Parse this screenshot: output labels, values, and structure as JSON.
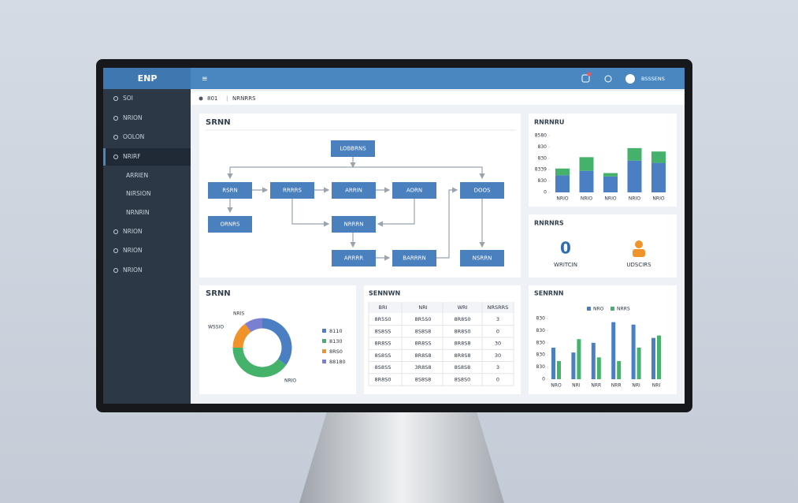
{
  "topbar": {
    "logo": "ENP",
    "menu_icon": "≡",
    "user": "BSSSENS"
  },
  "breadcrumb": {
    "home": "801",
    "page": "NRNRRS"
  },
  "sidebar": {
    "items": [
      "SOI",
      "NRION",
      "OOLON",
      "NRIRF"
    ],
    "subitems": [
      "ARRIEN",
      "NIRSION",
      "NRNRIN"
    ],
    "more": [
      "NRION",
      "NRION",
      "NRION"
    ]
  },
  "flowchart": {
    "title": "SRNN",
    "nodes": [
      "LOBBRNS",
      "RSRN",
      "RRRRS",
      "ARRIN",
      "AORN",
      "DOOS",
      "ORNRS",
      "NRRRN",
      "ARRRR",
      "BARRRN",
      "NSRRN"
    ]
  },
  "stacked_bar": {
    "title": "RNRNRU",
    "categories": [
      "NRIO",
      "NRIO",
      "NRIO",
      "NRIO",
      "NRIO"
    ],
    "series": [
      {
        "color": "#4a7fc4",
        "values": [
          15,
          19,
          14,
          28,
          26
        ]
      },
      {
        "color": "#45b26b",
        "values": [
          6,
          12,
          3,
          11,
          10
        ]
      }
    ],
    "ylim": [
      0,
      50
    ],
    "yticks": [
      0,
      {
        "value": 10,
        "label": "830"
      },
      {
        "value": 20,
        "label": "8339"
      },
      {
        "value": 30,
        "label": "830"
      },
      {
        "value": 40,
        "label": "830"
      },
      {
        "value": 50,
        "label": "8580"
      }
    ]
  },
  "stats": {
    "title": "RNRNRS",
    "items": [
      {
        "value": "0",
        "label": "WRITCIN"
      },
      {
        "label": "UDSCIRS"
      }
    ]
  },
  "donut": {
    "title": "SRNN",
    "values": [
      35,
      40,
      15,
      10
    ],
    "colors": [
      "#4a7fc4",
      "#45b26b",
      "#f0932b",
      "#7b7fd1"
    ],
    "callouts": [
      "NRIS",
      "WSSIO",
      "NRIO"
    ],
    "legend": [
      "8110",
      "8130",
      "8RS0",
      "88180"
    ]
  },
  "table": {
    "title": "SENNWN",
    "header": [
      "BRI",
      "NRI",
      "WRI",
      "NRSRRS"
    ],
    "rows": [
      [
        "8R5S0",
        "8R5S0",
        "8R8S0",
        "3"
      ],
      [
        "8S8SS",
        "8S8S8",
        "8R8S0",
        "0"
      ],
      [
        "8R8SS",
        "8R8SS",
        "8R8S8",
        "30"
      ],
      [
        "8S8SS",
        "8R8S8",
        "8R8S8",
        "30"
      ],
      [
        "8S8SS",
        "3R8S8",
        "8S8S8",
        "3"
      ],
      [
        "8R8S0",
        "8S8S8",
        "8S8S0",
        "0"
      ]
    ]
  },
  "grouped_bar": {
    "title": "SENRNN",
    "categories": [
      "NRO",
      "NRI",
      "NRR",
      "NRR",
      "NRI",
      "NRI"
    ],
    "series": [
      {
        "name": "NRO",
        "color": "#4a7fc4",
        "values": [
          26,
          22,
          30,
          47,
          45,
          34
        ]
      },
      {
        "name": "NRRS",
        "color": "#45b26b",
        "values": [
          15,
          33,
          18,
          15,
          26,
          36
        ]
      }
    ],
    "ylim": [
      0,
      50
    ],
    "yticks": [
      0,
      {
        "value": 10,
        "label": "830"
      },
      {
        "value": 20,
        "label": "830"
      },
      {
        "value": 30,
        "label": "830"
      },
      {
        "value": 40,
        "label": "830"
      },
      {
        "value": 50,
        "label": "830"
      }
    ]
  }
}
